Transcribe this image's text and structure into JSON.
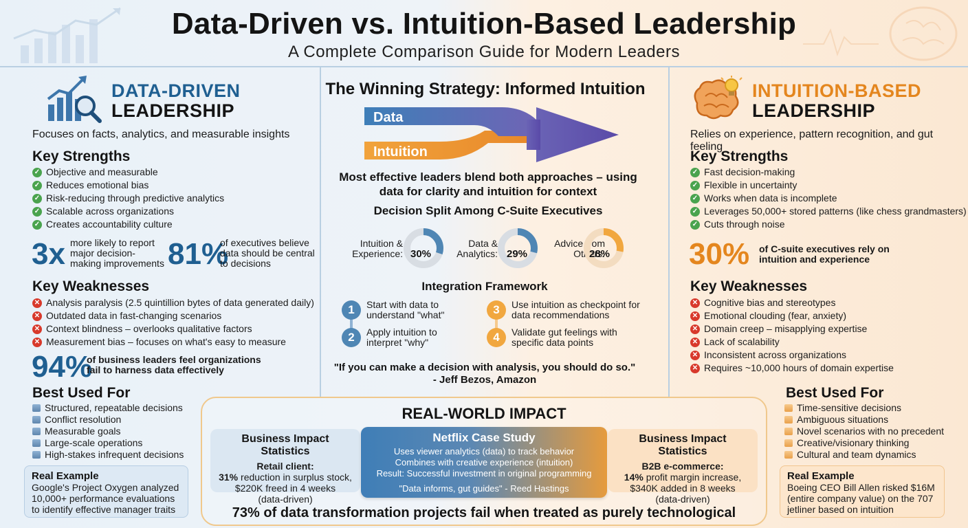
{
  "header": {
    "title": "Data-Driven vs. Intuition-Based Leadership",
    "subtitle": "A Complete Comparison Guide for Modern Leaders"
  },
  "colors": {
    "blue_accent": "#1f5f91",
    "orange_accent": "#e4861e",
    "check_green": "#4aa34e",
    "cross_red": "#d8392b"
  },
  "left": {
    "heading_line1": "DATA-DRIVEN",
    "heading_line2": "LEADERSHIP",
    "description": "Focuses on facts, analytics, and measurable insights",
    "strengths_title": "Key Strengths",
    "strengths": [
      "Objective and measurable",
      "Reduces emotional bias",
      "Risk-reducing through predictive analytics",
      "Scalable across organizations",
      "Creates accountability culture"
    ],
    "stat1_num": "3x",
    "stat1_text": "more likely to report major decision-making improvements",
    "stat2_num": "81%",
    "stat2_text": "of executives believe data should be central to decisions",
    "weaknesses_title": "Key Weaknesses",
    "weaknesses": [
      "Analysis paralysis (2.5 quintillion bytes of data generated daily)",
      "Outdated data in fast-changing scenarios",
      "Context blindness – overlooks qualitative factors",
      "Measurement bias – focuses on what's easy to measure"
    ],
    "stat3_num": "94%",
    "stat3_text": "of business leaders feel organizations fail to harness data effectively",
    "best_title": "Best Used For",
    "best": [
      "Structured, repeatable decisions",
      "Conflict resolution",
      "Measurable goals",
      "Large-scale operations",
      "High-stakes infrequent decisions"
    ],
    "example_title": "Real Example",
    "example_text": "Google's Project Oxygen analyzed 10,000+ performance evaluations to identify effective manager traits"
  },
  "middle": {
    "title": "The Winning Strategy: Informed Intuition",
    "arrow_top_label": "Data",
    "arrow_bottom_label": "Intuition",
    "description": "Most effective leaders blend both approaches – using data for clarity and intuition for context",
    "split_title": "Decision Split Among C-Suite Executives",
    "donuts": [
      {
        "label_line1": "Intuition &",
        "label_line2": "Experience:",
        "pct": "30%",
        "value": 30,
        "color": "#4f86b4"
      },
      {
        "label_line1": "Data &",
        "label_line2": "Analytics:",
        "pct": "29%",
        "value": 29,
        "color": "#4f86b4"
      },
      {
        "label_line1": "Advice from",
        "label_line2": "Others:",
        "pct": "28%",
        "value": 28,
        "color": "#f1a73f"
      }
    ],
    "framework_title": "Integration Framework",
    "framework": [
      {
        "num": "1",
        "text": "Start with data to understand \"what\""
      },
      {
        "num": "2",
        "text": "Apply intuition to interpret \"why\""
      },
      {
        "num": "3",
        "text": "Use intuition as checkpoint for data recommendations"
      },
      {
        "num": "4",
        "text": "Validate gut feelings with specific data points"
      }
    ],
    "quote": "\"If you can make a decision with analysis, you should do so.\"",
    "quote_author": "- Jeff Bezos, Amazon"
  },
  "right": {
    "heading_line1": "INTUITION-BASED",
    "heading_line2": "LEADERSHIP",
    "description": "Relies on experience, pattern recognition, and gut feeling",
    "strengths_title": "Key Strengths",
    "strengths": [
      "Fast decision-making",
      "Flexible in uncertainty",
      "Works when data is incomplete",
      "Leverages 50,000+ stored patterns (like chess grandmasters)",
      "Cuts through noise"
    ],
    "stat_num": "30%",
    "stat_text": "of C-suite executives rely on intuition and experience",
    "weaknesses_title": "Key Weaknesses",
    "weaknesses": [
      "Cognitive bias and stereotypes",
      "Emotional clouding (fear, anxiety)",
      "Domain creep – misapplying expertise",
      "Lack of scalability",
      "Inconsistent across organizations",
      "Requires ~10,000 hours of domain expertise"
    ],
    "best_title": "Best Used For",
    "best": [
      "Time-sensitive decisions",
      "Ambiguous situations",
      "Novel scenarios with no precedent",
      "Creative/visionary thinking",
      "Cultural and team dynamics"
    ],
    "example_title": "Real Example",
    "example_text": "Boeing CEO Bill Allen risked $16M (entire company value) on the 707 jetliner based on intuition"
  },
  "impact": {
    "title": "REAL-WORLD IMPACT",
    "left_box": {
      "heading": "Business Impact Statistics",
      "client": "Retail client:",
      "line1_bold": "31%",
      "line1_rest": " reduction in surplus stock,",
      "line2": "$220K freed in 4 weeks",
      "line3": "(data-driven)"
    },
    "netflix": {
      "heading": "Netflix Case Study",
      "line1": "Uses viewer analytics (data) to track behavior",
      "line2": "Combines with creative experience (intuition)",
      "line3": "Result: Successful investment in original programming",
      "line4": "\"Data informs, gut guides\" - Reed Hastings"
    },
    "right_box": {
      "heading": "Business Impact Statistics",
      "client": "B2B e-commerce:",
      "line1_bold": "14%",
      "line1_rest": " profit margin increase,",
      "line2": "$340K added in 8 weeks",
      "line3": "(data-driven)"
    },
    "bottom_stat": "73% of data transformation projects fail when treated as purely technological"
  }
}
